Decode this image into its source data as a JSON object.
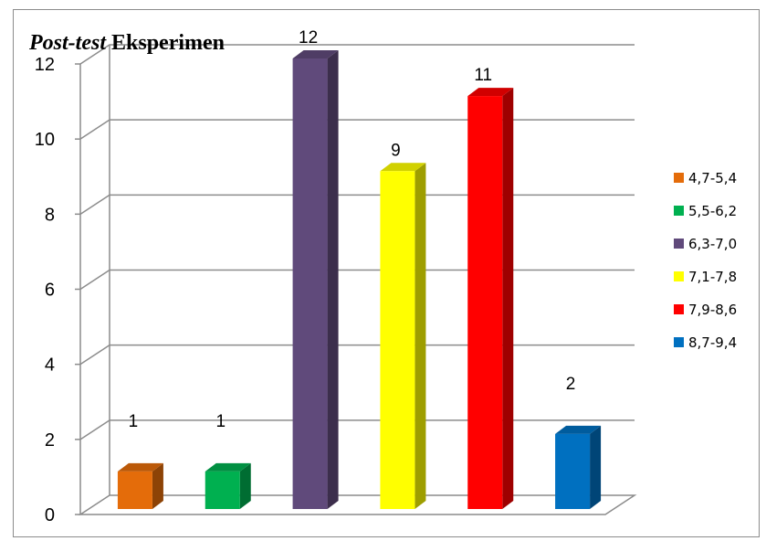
{
  "chart_data": {
    "type": "bar",
    "title_italic": "Post-test",
    "title_rest": " Eksperimen",
    "categories": [
      "4,7-5,4",
      "5,5-6,2",
      "6,3-7,0",
      "7,1-7,8",
      "7,9-8,6",
      "8,7-9,4"
    ],
    "values": [
      1,
      1,
      12,
      9,
      11,
      2
    ],
    "colors": [
      "#e46c0a",
      "#00b050",
      "#604a7b",
      "#ffff00",
      "#ff0000",
      "#0070c0"
    ],
    "ylim": [
      0,
      12
    ],
    "yticks": [
      0,
      2,
      4,
      6,
      8,
      10,
      12
    ],
    "xlabel": "",
    "ylabel": "",
    "grid": true,
    "legend_position": "right"
  }
}
